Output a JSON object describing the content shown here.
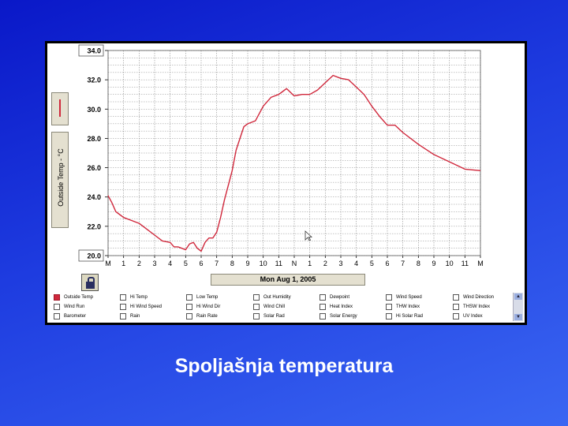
{
  "chart_data": {
    "type": "line",
    "ylabel": "Outside Temp - °C",
    "xlabel": "Mon Aug 1, 2005",
    "ylim": [
      20.0,
      34.0
    ],
    "yticks": [
      "20.0",
      "22.0",
      "24.0",
      "26.0",
      "28.0",
      "30.0",
      "32.0",
      "34.0"
    ],
    "xticks": [
      "M",
      "1",
      "2",
      "3",
      "4",
      "5",
      "6",
      "7",
      "8",
      "9",
      "10",
      "11",
      "N",
      "1",
      "2",
      "3",
      "4",
      "5",
      "6",
      "7",
      "8",
      "9",
      "10",
      "11",
      "M"
    ],
    "grid": true,
    "series": [
      {
        "color": "#d0283c",
        "x": [
          0,
          0.25,
          0.5,
          0.75,
          1,
          1.5,
          2,
          2.5,
          3,
          3.5,
          4,
          4.25,
          4.5,
          4.75,
          5,
          5.25,
          5.5,
          5.75,
          6,
          6.25,
          6.5,
          6.75,
          7,
          7.25,
          7.5,
          8,
          8.25,
          8.5,
          8.75,
          9,
          9.5,
          10,
          10.5,
          11,
          11.25,
          11.5,
          12,
          12.5,
          13,
          13.5,
          14,
          14.5,
          15,
          15.5,
          16,
          16.5,
          17,
          17.5,
          18,
          18.5,
          19,
          20,
          21,
          22,
          23,
          24
        ],
        "values": [
          24.1,
          23.6,
          23.0,
          22.8,
          22.6,
          22.4,
          22.2,
          21.8,
          21.4,
          21.0,
          20.9,
          20.6,
          20.6,
          20.5,
          20.4,
          20.8,
          20.9,
          20.5,
          20.3,
          20.9,
          21.2,
          21.2,
          21.6,
          22.6,
          23.8,
          25.8,
          27.2,
          28.0,
          28.8,
          29.0,
          29.2,
          30.2,
          30.8,
          31.0,
          31.2,
          31.4,
          30.9,
          31.0,
          31.0,
          31.3,
          31.8,
          32.3,
          32.1,
          32.0,
          31.5,
          31.0,
          30.2,
          29.5,
          28.9,
          28.9,
          28.4,
          27.6,
          26.9,
          26.4,
          25.9,
          25.8
        ]
      }
    ]
  },
  "date_label": "Mon Aug 1, 2005",
  "checkboxes": [
    {
      "label": "Outside Temp",
      "checked": true
    },
    {
      "label": "Hi Temp",
      "checked": false
    },
    {
      "label": "Low Temp",
      "checked": false
    },
    {
      "label": "Out Humidity",
      "checked": false
    },
    {
      "label": "Dewpoint",
      "checked": false
    },
    {
      "label": "Wind Speed",
      "checked": false
    },
    {
      "label": "Wind Direction",
      "checked": false
    },
    {
      "label": "Wind Run",
      "checked": false
    },
    {
      "label": "Hi Wind Speed",
      "checked": false
    },
    {
      "label": "Hi Wind Dir",
      "checked": false
    },
    {
      "label": "Wind Chill",
      "checked": false
    },
    {
      "label": "Heat Index",
      "checked": false
    },
    {
      "label": "THW Index",
      "checked": false
    },
    {
      "label": "THSW Index",
      "checked": false
    },
    {
      "label": "Barometer",
      "checked": false
    },
    {
      "label": "Rain",
      "checked": false
    },
    {
      "label": "Rain Rate",
      "checked": false
    },
    {
      "label": "Solar Rad",
      "checked": false
    },
    {
      "label": "Solar Energy",
      "checked": false
    },
    {
      "label": "Hi Solar Rad",
      "checked": false
    },
    {
      "label": "UV Index",
      "checked": false
    }
  ],
  "caption": "Spoljašnja temperatura",
  "icons": {
    "lock": "lock-icon",
    "cursor": "cursor-icon",
    "scroll_up": "scroll-up-icon",
    "scroll_down": "scroll-down-icon"
  }
}
